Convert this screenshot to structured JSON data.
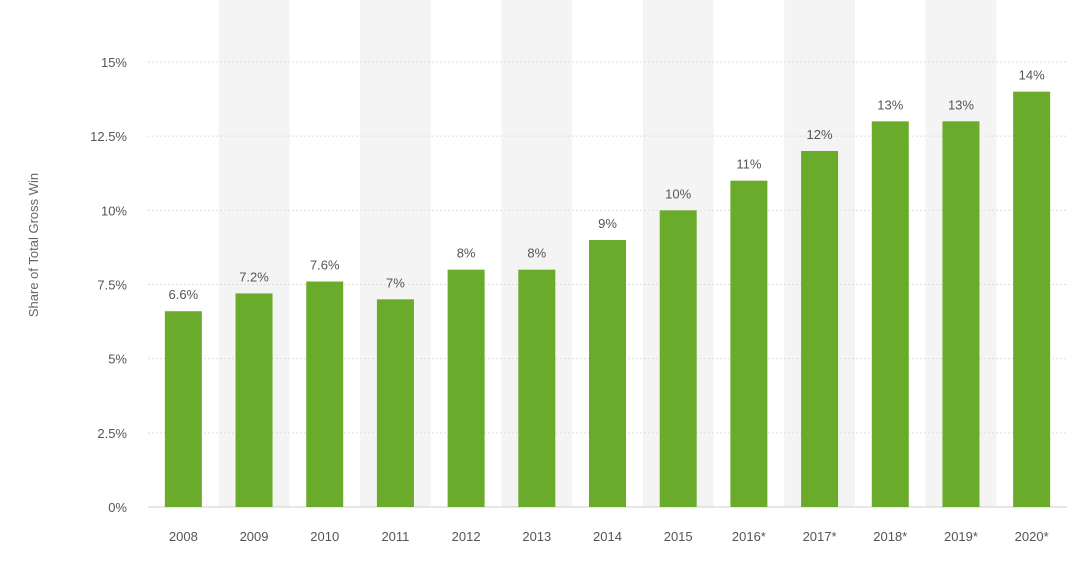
{
  "chart_data": {
    "type": "bar",
    "title": "",
    "xlabel": "",
    "ylabel": "Share of Total Gross Win",
    "categories": [
      "2008",
      "2009",
      "2010",
      "2011",
      "2012",
      "2013",
      "2014",
      "2015",
      "2016*",
      "2017*",
      "2018*",
      "2019*",
      "2020*"
    ],
    "values": [
      6.6,
      7.2,
      7.6,
      7,
      8,
      8,
      9,
      10,
      11,
      12,
      13,
      13,
      14
    ],
    "data_labels": [
      "6.6%",
      "7.2%",
      "7.6%",
      "7%",
      "8%",
      "8%",
      "9%",
      "10%",
      "11%",
      "12%",
      "13%",
      "13%",
      "14%"
    ],
    "y_ticks": [
      0,
      2.5,
      5,
      7.5,
      10,
      12.5,
      15
    ],
    "y_tick_labels": [
      "0%",
      "2.5%",
      "5%",
      "7.5%",
      "10%",
      "12.5%",
      "15%"
    ],
    "ylim": [
      0,
      15
    ],
    "grid": true,
    "legend": "none",
    "colors": {
      "bar": "#6aab2b",
      "column_band": "#f4f4f4",
      "grid": "#dddddd",
      "text": "#555555"
    }
  }
}
